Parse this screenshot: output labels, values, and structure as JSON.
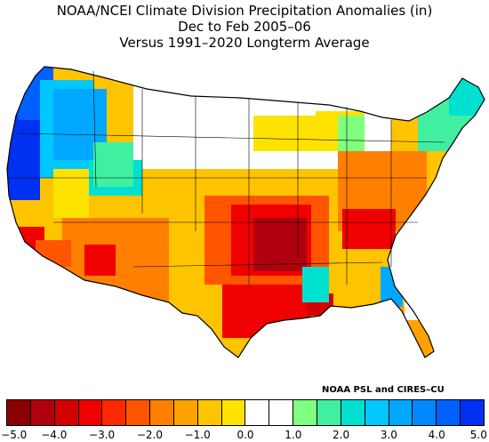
{
  "header": {
    "line1": "NOAA/NCEI Climate Division Precipitation Anomalies (in)",
    "line2": "Dec to Feb 2005–06",
    "line3": "Versus 1991–2020 Longterm Average"
  },
  "credit": "NOAA PSL and CIRES–CU",
  "colorbar": {
    "colors": [
      "#8b0000",
      "#b0000d",
      "#d40000",
      "#f00000",
      "#ff2a00",
      "#ff5500",
      "#ff7f00",
      "#ffa200",
      "#ffc400",
      "#ffe300",
      "#ffffff",
      "#ffffff",
      "#80ff80",
      "#40f0a0",
      "#00e0d0",
      "#00c8ff",
      "#00a8ff",
      "#0088ff",
      "#0060ff",
      "#0030f0"
    ],
    "ticks": [
      "−5.0",
      "−4.0",
      "−3.0",
      "−2.0",
      "−1.0",
      "0.0",
      "1.0",
      "2.0",
      "3.0",
      "4.0",
      "5.0"
    ]
  },
  "map_colors": {
    "land_default": "#ffc400",
    "border": "#000000",
    "state_line": "#000000"
  }
}
